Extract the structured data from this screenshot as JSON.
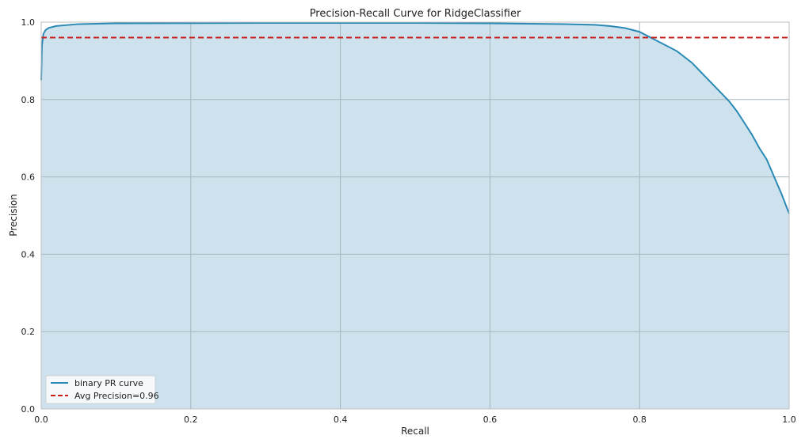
{
  "chart_data": {
    "type": "line",
    "title": "Precision-Recall Curve for RidgeClassifier",
    "xlabel": "Recall",
    "ylabel": "Precision",
    "xlim": [
      0.0,
      1.0
    ],
    "ylim": [
      0.0,
      1.0
    ],
    "xticks": [
      "0.0",
      "0.2",
      "0.4",
      "0.6",
      "0.8",
      "1.0"
    ],
    "yticks": [
      "0.0",
      "0.2",
      "0.4",
      "0.6",
      "0.8",
      "1.0"
    ],
    "grid": true,
    "legend_position": "bottom-left",
    "series": [
      {
        "name": "binary PR curve",
        "color": "#2a8ab5",
        "fill": "#cde2ec",
        "points": [
          [
            0.0,
            0.85
          ],
          [
            0.001,
            0.94
          ],
          [
            0.003,
            0.97
          ],
          [
            0.006,
            0.98
          ],
          [
            0.01,
            0.985
          ],
          [
            0.02,
            0.99
          ],
          [
            0.05,
            0.995
          ],
          [
            0.1,
            0.997
          ],
          [
            0.3,
            0.998
          ],
          [
            0.5,
            0.998
          ],
          [
            0.6,
            0.997
          ],
          [
            0.7,
            0.995
          ],
          [
            0.74,
            0.993
          ],
          [
            0.76,
            0.99
          ],
          [
            0.78,
            0.985
          ],
          [
            0.79,
            0.98
          ],
          [
            0.8,
            0.975
          ],
          [
            0.81,
            0.965
          ],
          [
            0.82,
            0.955
          ],
          [
            0.83,
            0.945
          ],
          [
            0.84,
            0.935
          ],
          [
            0.85,
            0.925
          ],
          [
            0.86,
            0.91
          ],
          [
            0.87,
            0.895
          ],
          [
            0.88,
            0.875
          ],
          [
            0.89,
            0.855
          ],
          [
            0.9,
            0.835
          ],
          [
            0.91,
            0.815
          ],
          [
            0.92,
            0.795
          ],
          [
            0.93,
            0.77
          ],
          [
            0.94,
            0.74
          ],
          [
            0.95,
            0.71
          ],
          [
            0.96,
            0.675
          ],
          [
            0.97,
            0.645
          ],
          [
            0.98,
            0.6
          ],
          [
            0.99,
            0.555
          ],
          [
            0.995,
            0.53
          ],
          [
            1.0,
            0.505
          ]
        ]
      },
      {
        "name": "Avg Precision=0.96",
        "color": "#c81e1e",
        "dashed": true,
        "y": 0.96
      }
    ]
  }
}
